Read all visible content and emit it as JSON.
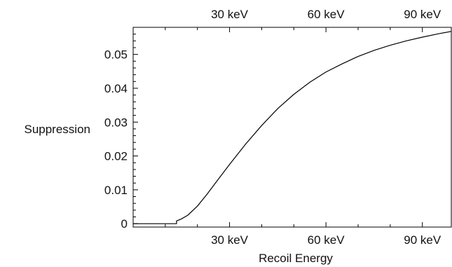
{
  "chart_data": {
    "type": "line",
    "title": "",
    "xlabel": "Recoil Energy",
    "ylabel": "Suppression",
    "xlim": [
      0,
      99
    ],
    "ylim": [
      -0.001,
      0.058
    ],
    "x_ticks": [
      {
        "value": 30,
        "label": "30 keV"
      },
      {
        "value": 60,
        "label": "60 keV"
      },
      {
        "value": 90,
        "label": "90 keV"
      }
    ],
    "y_ticks": [
      {
        "value": 0,
        "label": "0"
      },
      {
        "value": 0.01,
        "label": "0.01"
      },
      {
        "value": 0.02,
        "label": "0.02"
      },
      {
        "value": 0.03,
        "label": "0.03"
      },
      {
        "value": 0.04,
        "label": "0.04"
      },
      {
        "value": 0.05,
        "label": "0.05"
      }
    ],
    "grid": false,
    "legend": "none",
    "series": [
      {
        "x": [
          0,
          5,
          10,
          13.5,
          13.5,
          15,
          17,
          20,
          23,
          26,
          30,
          35,
          40,
          45,
          50,
          55,
          60,
          65,
          70,
          75,
          80,
          85,
          90,
          95,
          99
        ],
        "y": [
          0,
          0,
          0,
          0,
          0.0008,
          0.0014,
          0.0025,
          0.0052,
          0.0087,
          0.0125,
          0.0175,
          0.0235,
          0.029,
          0.034,
          0.0382,
          0.0418,
          0.0448,
          0.0472,
          0.0494,
          0.0512,
          0.0527,
          0.054,
          0.0551,
          0.0561,
          0.0568
        ]
      }
    ],
    "colors": {
      "line": "#000000",
      "axis": "#000000"
    }
  }
}
